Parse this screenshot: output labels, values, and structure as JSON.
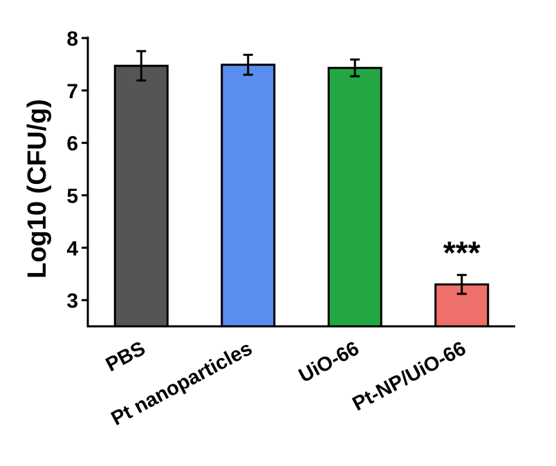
{
  "chart_data": {
    "type": "bar",
    "title": "",
    "xlabel": "",
    "ylabel": "Log10 (CFU/g)",
    "ylim": [
      2.5,
      8
    ],
    "yticks": [
      "3",
      "4",
      "5",
      "6",
      "7",
      "8"
    ],
    "grid": false,
    "categories": [
      "PBS",
      "Pt nanoparticles",
      "UiO-66",
      "Pt-NP/UiO-66"
    ],
    "values": [
      7.47,
      7.49,
      7.43,
      3.3
    ],
    "errors": [
      0.28,
      0.19,
      0.16,
      0.18
    ],
    "colors": [
      "#555555",
      "#5b8def",
      "#22a744",
      "#ef6f6a"
    ],
    "annotations": [
      {
        "category_index": 3,
        "text": "***"
      }
    ]
  }
}
